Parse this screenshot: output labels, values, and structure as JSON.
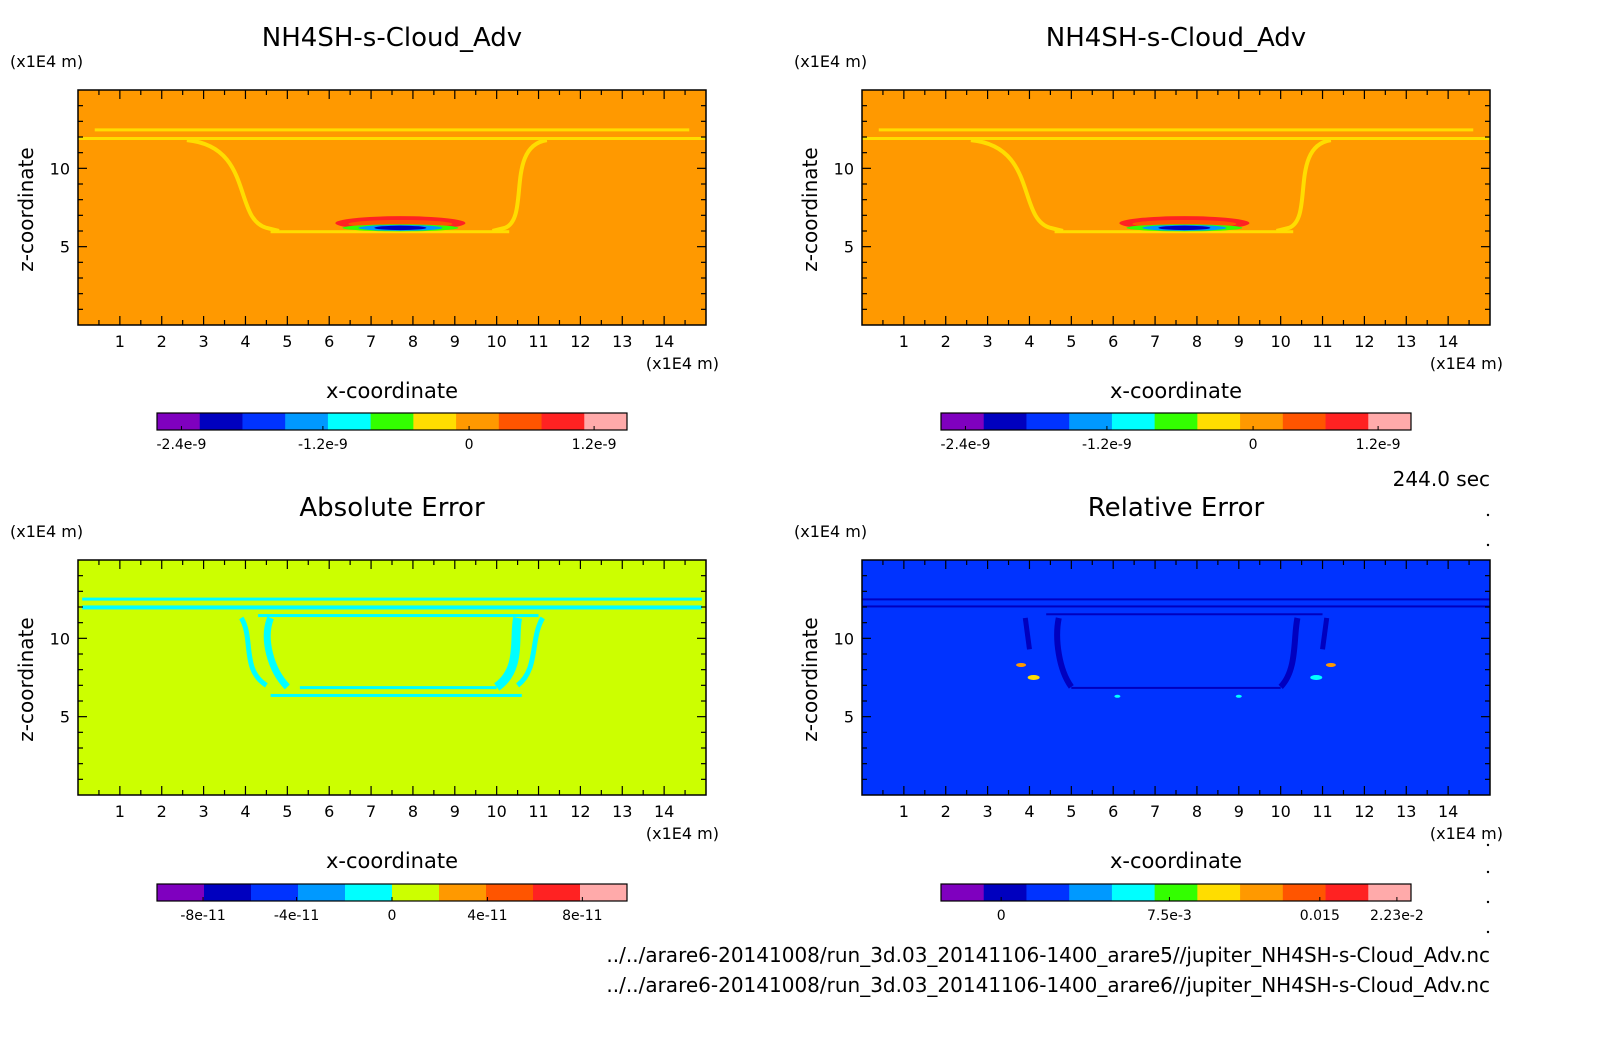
{
  "time_label": "244.0 sec",
  "file_paths": [
    "../../arare6-20141008/run_3d.03_20141106-1400_arare5//jupiter_NH4SH-s-Cloud_Adv.nc",
    "../../arare6-20141008/run_3d.03_20141106-1400_arare6//jupiter_NH4SH-s-Cloud_Adv.nc"
  ],
  "colors": {
    "orange_bg": "#ff9900",
    "yellowgreen_bg": "#ccff00",
    "blue_bg": "#0033ff"
  },
  "chart_data": [
    {
      "type": "heatmap",
      "title": "NH4SH-s-Cloud_Adv",
      "xlabel": "x-coordinate",
      "ylabel": "z-coordinate",
      "x_unit": "(x1E4 m)",
      "y_unit": "(x1E4 m)",
      "xlim": [
        0,
        15
      ],
      "ylim": [
        0,
        15
      ],
      "x_ticks": [
        1,
        2,
        3,
        4,
        5,
        6,
        7,
        8,
        9,
        10,
        11,
        12,
        13,
        14
      ],
      "y_ticks": [
        5,
        10
      ],
      "background": "#ff9900",
      "colorbar": {
        "colors": [
          "#7f00bf",
          "#0000bf",
          "#0033ff",
          "#0099ff",
          "#00ffff",
          "#33ff00",
          "#ffdd00",
          "#ff9900",
          "#ff5500",
          "#ff2222",
          "#ffaaaa"
        ],
        "labels": [
          "-2.4e-9",
          "-1.2e-9",
          "0",
          "1.2e-9"
        ]
      }
    },
    {
      "type": "heatmap",
      "title": "NH4SH-s-Cloud_Adv",
      "xlabel": "x-coordinate",
      "ylabel": "z-coordinate",
      "x_unit": "(x1E4 m)",
      "y_unit": "(x1E4 m)",
      "xlim": [
        0,
        15
      ],
      "ylim": [
        0,
        15
      ],
      "x_ticks": [
        1,
        2,
        3,
        4,
        5,
        6,
        7,
        8,
        9,
        10,
        11,
        12,
        13,
        14
      ],
      "y_ticks": [
        5,
        10
      ],
      "background": "#ff9900",
      "colorbar": {
        "colors": [
          "#7f00bf",
          "#0000bf",
          "#0033ff",
          "#0099ff",
          "#00ffff",
          "#33ff00",
          "#ffdd00",
          "#ff9900",
          "#ff5500",
          "#ff2222",
          "#ffaaaa"
        ],
        "labels": [
          "-2.4e-9",
          "-1.2e-9",
          "0",
          "1.2e-9"
        ]
      }
    },
    {
      "type": "heatmap",
      "title": "Absolute Error",
      "xlabel": "x-coordinate",
      "ylabel": "z-coordinate",
      "x_unit": "(x1E4 m)",
      "y_unit": "(x1E4 m)",
      "xlim": [
        0,
        15
      ],
      "ylim": [
        0,
        15
      ],
      "x_ticks": [
        1,
        2,
        3,
        4,
        5,
        6,
        7,
        8,
        9,
        10,
        11,
        12,
        13,
        14
      ],
      "y_ticks": [
        5,
        10
      ],
      "background": "#ccff00",
      "colorbar": {
        "colors": [
          "#7f00bf",
          "#0000bf",
          "#0033ff",
          "#0099ff",
          "#00ffff",
          "#ccff00",
          "#ff9900",
          "#ff5500",
          "#ff2222",
          "#ffaaaa"
        ],
        "labels": [
          "-8e-11",
          "-4e-11",
          "0",
          "4e-11",
          "8e-11"
        ]
      }
    },
    {
      "type": "heatmap",
      "title": "Relative Error",
      "xlabel": "x-coordinate",
      "ylabel": "z-coordinate",
      "x_unit": "(x1E4 m)",
      "y_unit": "(x1E4 m)",
      "xlim": [
        0,
        15
      ],
      "ylim": [
        0,
        15
      ],
      "x_ticks": [
        1,
        2,
        3,
        4,
        5,
        6,
        7,
        8,
        9,
        10,
        11,
        12,
        13,
        14
      ],
      "y_ticks": [
        5,
        10
      ],
      "background": "#0033ff",
      "colorbar": {
        "colors": [
          "#7f00bf",
          "#0000bf",
          "#0033ff",
          "#0099ff",
          "#00ffff",
          "#33ff00",
          "#ffdd00",
          "#ff9900",
          "#ff5500",
          "#ff2222",
          "#ffaaaa"
        ],
        "labels": [
          "0",
          "7.5e-3",
          "0.015",
          "2.23e-2"
        ]
      }
    }
  ]
}
